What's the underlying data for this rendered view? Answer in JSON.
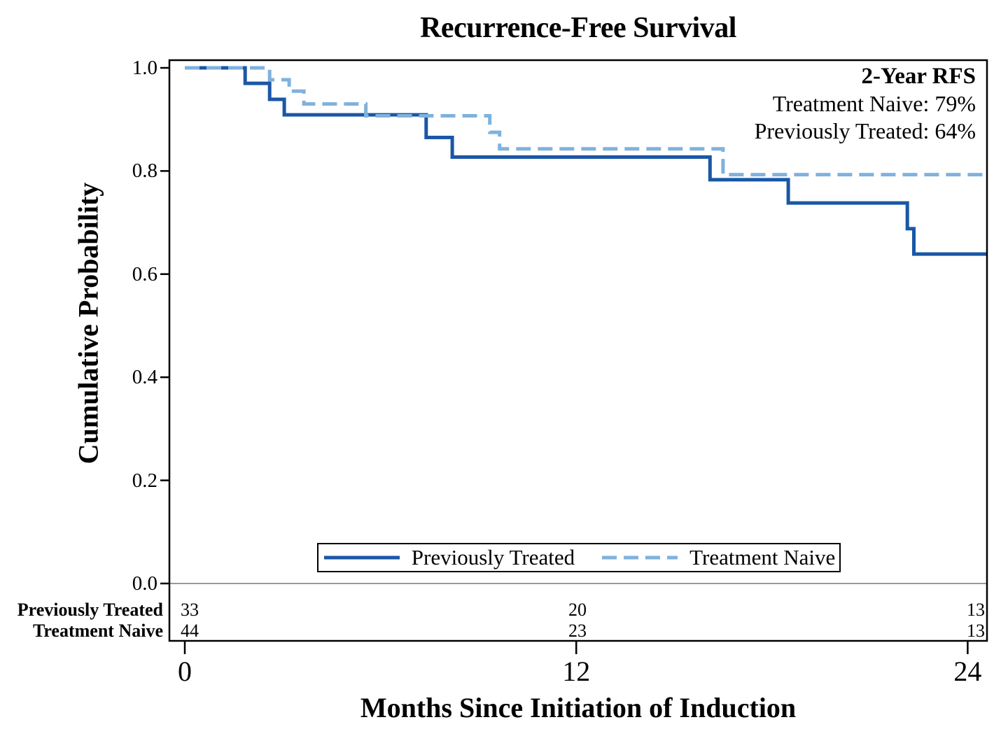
{
  "title": "Recurrence-Free Survival",
  "axes": {
    "ylabel": "Cumulative Probability",
    "xlabel": "Months Since Initiation of Induction"
  },
  "annotation": {
    "title": "2-Year RFS",
    "lines": [
      "Treatment Naive: 79%",
      "Previously Treated: 64%"
    ]
  },
  "legend": {
    "items": [
      {
        "label": "Previously Treated",
        "style": "solid",
        "color": "#1a57a6"
      },
      {
        "label": "Treatment Naive",
        "style": "dashed",
        "color": "#7fb2dd"
      }
    ]
  },
  "risk_table": {
    "rows": [
      {
        "label": "Previously Treated",
        "counts": [
          "33",
          "20",
          "13"
        ]
      },
      {
        "label": "Treatment Naive",
        "counts": [
          "44",
          "23",
          "13"
        ]
      }
    ]
  },
  "colors": {
    "previously_treated": "#1a57a6",
    "treatment_naive": "#7fb2dd",
    "zero_line": "#999999",
    "frame": "#000000"
  },
  "chart_data": {
    "type": "line",
    "subtype": "kaplan-meier-step",
    "title": "Recurrence-Free Survival",
    "xlabel": "Months Since Initiation of Induction",
    "ylabel": "Cumulative Probability",
    "xlim": [
      -0.5,
      24.6
    ],
    "ylim": [
      0.0,
      1.0
    ],
    "grid": false,
    "legend_position": "bottom-center-boxed",
    "x_ticks": [
      {
        "label": "0",
        "value": 0
      },
      {
        "label": "12",
        "value": 12
      },
      {
        "label": "24",
        "value": 24
      }
    ],
    "y_ticks": [
      {
        "label": "1.0",
        "value": 1.0
      },
      {
        "label": "0.8",
        "value": 0.8
      },
      {
        "label": "0.6",
        "value": 0.6
      },
      {
        "label": "0.4",
        "value": 0.4
      },
      {
        "label": "0.2",
        "value": 0.2
      },
      {
        "label": "0.0",
        "value": 0.0
      }
    ],
    "series": [
      {
        "name": "Previously Treated",
        "line": "solid",
        "color": "#1a57a6",
        "two_year_rfs": 0.64,
        "points": [
          [
            0,
            1.0
          ],
          [
            1.85,
            1.0
          ],
          [
            1.85,
            0.97
          ],
          [
            2.6,
            0.97
          ],
          [
            2.6,
            0.939
          ],
          [
            3.05,
            0.939
          ],
          [
            3.05,
            0.909
          ],
          [
            7.4,
            0.909
          ],
          [
            7.4,
            0.865
          ],
          [
            8.2,
            0.865
          ],
          [
            8.2,
            0.827
          ],
          [
            16.1,
            0.827
          ],
          [
            16.1,
            0.783
          ],
          [
            18.5,
            0.783
          ],
          [
            18.5,
            0.738
          ],
          [
            22.15,
            0.738
          ],
          [
            22.15,
            0.688
          ],
          [
            22.35,
            0.688
          ],
          [
            22.35,
            0.639
          ],
          [
            24.6,
            0.639
          ]
        ]
      },
      {
        "name": "Treatment Naive",
        "line": "dashed",
        "color": "#7fb2dd",
        "two_year_rfs": 0.79,
        "points": [
          [
            0,
            1.0
          ],
          [
            2.6,
            1.0
          ],
          [
            2.6,
            0.977
          ],
          [
            3.2,
            0.977
          ],
          [
            3.2,
            0.955
          ],
          [
            3.65,
            0.955
          ],
          [
            3.65,
            0.93
          ],
          [
            5.55,
            0.93
          ],
          [
            5.55,
            0.907
          ],
          [
            9.35,
            0.907
          ],
          [
            9.35,
            0.875
          ],
          [
            9.65,
            0.875
          ],
          [
            9.65,
            0.843
          ],
          [
            16.5,
            0.843
          ],
          [
            16.5,
            0.793
          ],
          [
            24.6,
            0.793
          ]
        ]
      }
    ],
    "number_at_risk": {
      "months": [
        0,
        12,
        24
      ],
      "Previously Treated": [
        33,
        20,
        13
      ],
      "Treatment Naive": [
        44,
        23,
        13
      ]
    }
  }
}
